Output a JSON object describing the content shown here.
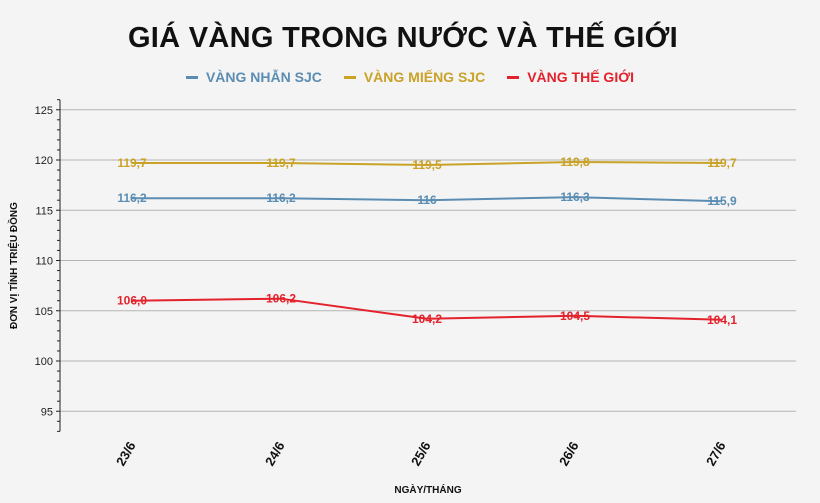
{
  "chart_data": {
    "type": "line",
    "title": "GIÁ VÀNG TRONG NƯỚC VÀ THẾ GIỚI",
    "xlabel": "NGÀY/THÁNG",
    "ylabel": "ĐƠN VỊ TÍNH TRIỆU ĐỒNG",
    "categories": [
      "23/6",
      "24/6",
      "25/6",
      "26/6",
      "27/6"
    ],
    "ylim": [
      93,
      126
    ],
    "yticks": [
      95,
      100,
      105,
      110,
      115,
      120,
      125
    ],
    "grid": true,
    "legend_position": "top",
    "series": [
      {
        "name": "VÀNG NHẪN SJC",
        "color": "#5b8db3",
        "values": [
          116.2,
          116.2,
          116.0,
          116.3,
          115.9
        ],
        "labels": [
          "116,2",
          "116,2",
          "116",
          "116,3",
          "115,9"
        ]
      },
      {
        "name": "VÀNG MIẾNG SJC",
        "color": "#c9a227",
        "values": [
          119.7,
          119.7,
          119.5,
          119.8,
          119.7
        ],
        "labels": [
          "119,7",
          "119,7",
          "119,5",
          "119,8",
          "119,7"
        ]
      },
      {
        "name": "VÀNG THẾ GIỚI",
        "color": "#e3222b",
        "values": [
          106.0,
          106.2,
          104.2,
          104.5,
          104.1
        ],
        "labels": [
          "106,0",
          "106,2",
          "104,2",
          "104,5",
          "104,1"
        ]
      }
    ]
  }
}
